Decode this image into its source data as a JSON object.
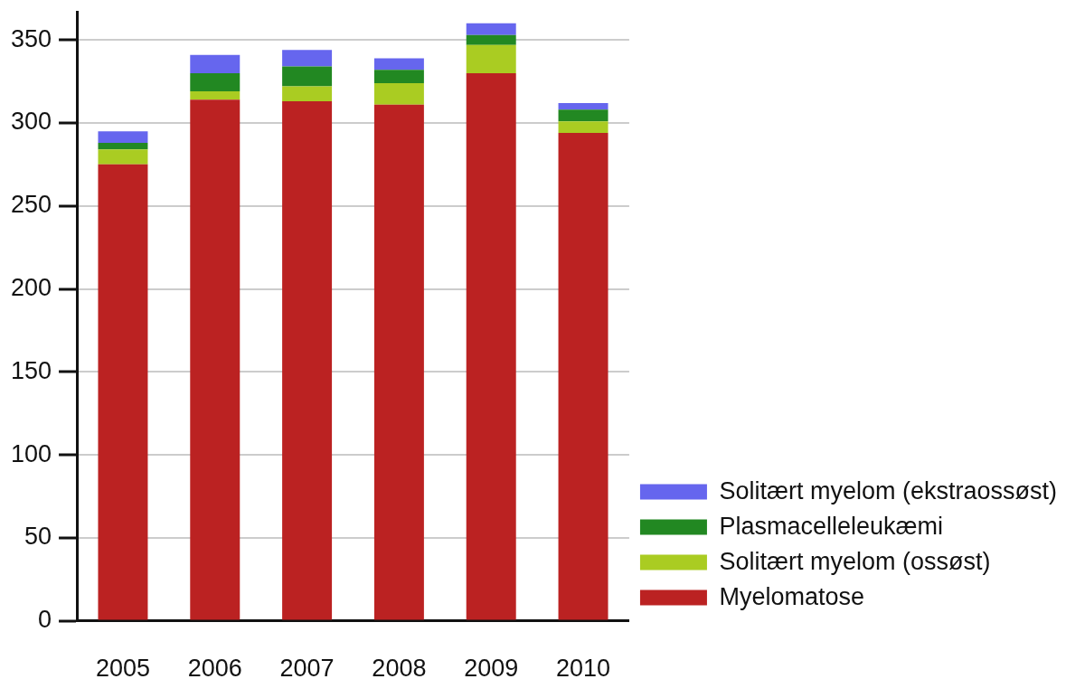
{
  "chart_data": {
    "type": "bar",
    "stacked": true,
    "categories": [
      "2005",
      "2006",
      "2007",
      "2008",
      "2009",
      "2010"
    ],
    "series": [
      {
        "name": "Myelomatose",
        "color": "#bb2222",
        "values": [
          275,
          314,
          313,
          311,
          330,
          294
        ]
      },
      {
        "name": "Solitært myelom (ossøst)",
        "color": "#aacc22",
        "values": [
          9,
          5,
          9,
          13,
          17,
          7
        ]
      },
      {
        "name": "Plasmacelleleukæmi",
        "color": "#228822",
        "values": [
          4,
          11,
          12,
          8,
          6,
          7
        ]
      },
      {
        "name": "Solitært myelom (ekstraossøst)",
        "color": "#6666ee",
        "values": [
          7,
          11,
          10,
          7,
          7,
          4
        ]
      }
    ],
    "ylim": [
      0,
      367
    ],
    "yticks": [
      0,
      50,
      100,
      150,
      200,
      250,
      300,
      350
    ],
    "grid": "y",
    "legend": "bottom right"
  }
}
